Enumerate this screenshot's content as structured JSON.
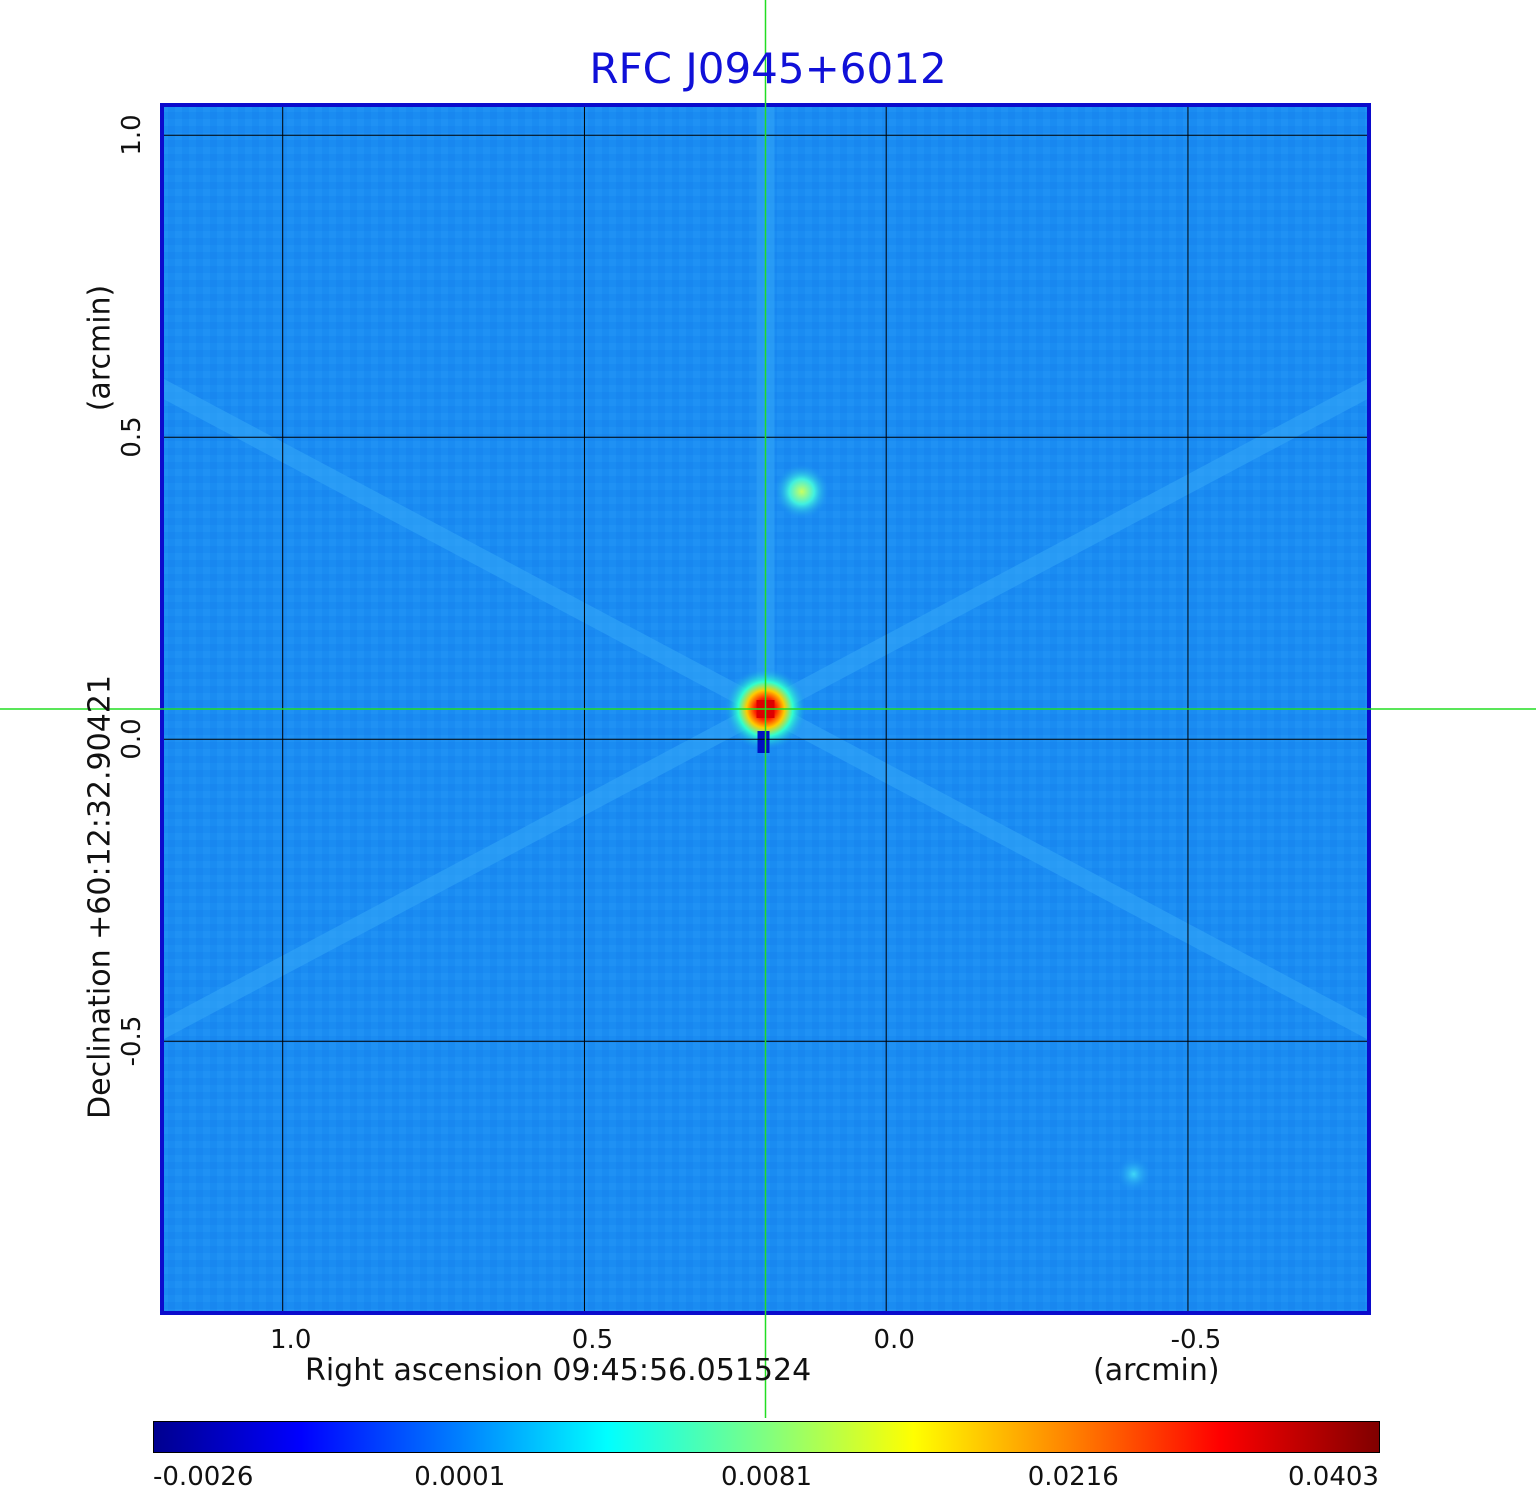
{
  "chart_data": {
    "type": "heatmap",
    "title": "RFC J0945+6012",
    "xlabel": "Right ascension  09:45:56.051524",
    "x_unit": "(arcmin)",
    "ylabel": "Declination  +60:12:32.90421",
    "y_unit": "(arcmin)",
    "xlim": [
      1.2,
      -0.8
    ],
    "ylim": [
      -0.95,
      1.05
    ],
    "x_ticks": [
      "1.0",
      "0.5",
      "0.0",
      "-0.5"
    ],
    "x_tick_values": [
      1.0,
      0.5,
      0.0,
      -0.5
    ],
    "y_ticks": [
      "1.0",
      "0.5",
      "0.0",
      "-0.5"
    ],
    "y_tick_values": [
      1.0,
      0.5,
      0.0,
      -0.5
    ],
    "grid": true,
    "crosshair": {
      "x": 0.2,
      "y": 0.05
    },
    "colorbar": {
      "tick_labels": [
        "-0.0026",
        "0.0001",
        "0.0081",
        "0.0216",
        "0.0403"
      ],
      "range": [
        -0.0026,
        0.0403
      ]
    },
    "sources": [
      {
        "x": 0.2,
        "y": 0.05,
        "value": 0.0403
      },
      {
        "x": 0.14,
        "y": 0.41,
        "value": 0.0081
      },
      {
        "x": -0.41,
        "y": -0.72,
        "value": 0.002
      }
    ],
    "background_value": -0.0005
  },
  "colors": {
    "title": "#1010d8",
    "frame": "#0b0bcc",
    "grid": "#000000",
    "crosshair": "#22dd22",
    "background_map": "#1a8cf2"
  }
}
